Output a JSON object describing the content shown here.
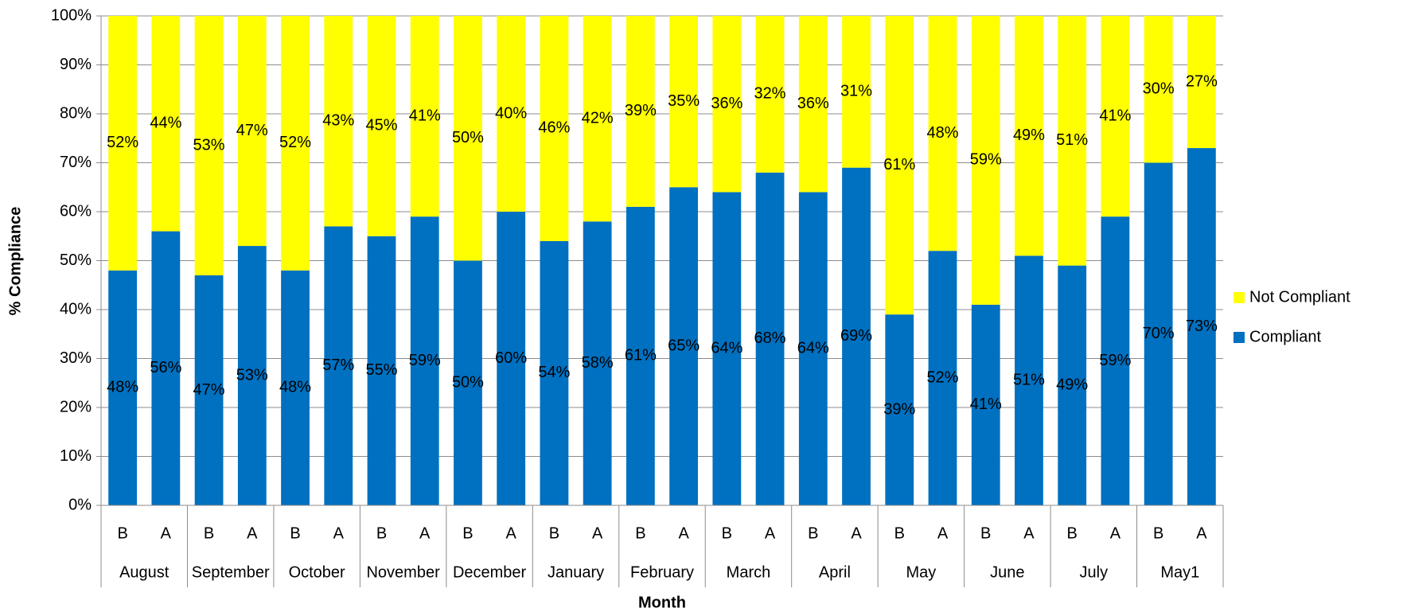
{
  "chart_data": {
    "type": "stacked_bar",
    "y_label": "% Compliance",
    "x_label": "Month",
    "categories": [
      "B",
      "A",
      "B",
      "A",
      "B",
      "A",
      "B",
      "A",
      "B",
      "A",
      "B",
      "A",
      "B",
      "A",
      "B",
      "A",
      "B",
      "A",
      "B",
      "A",
      "B",
      "A",
      "B",
      "A",
      "B",
      "A"
    ],
    "groups": [
      "August",
      "September",
      "October",
      "November",
      "December",
      "January",
      "February",
      "March",
      "April",
      "May",
      "June",
      "July",
      "May1"
    ],
    "series": [
      {
        "name": "Compliant",
        "color": "#0070c0",
        "values": [
          48,
          56,
          47,
          53,
          48,
          57,
          55,
          59,
          50,
          60,
          54,
          58,
          61,
          65,
          64,
          68,
          64,
          69,
          39,
          52,
          41,
          51,
          49,
          59,
          70,
          73
        ],
        "value_labels": [
          "48%",
          "56%",
          "47%",
          "53%",
          "48%",
          "57%",
          "55%",
          "59%",
          "50%",
          "60%",
          "54%",
          "58%",
          "61%",
          "65%",
          "64%",
          "68%",
          "64%",
          "69%",
          "39%",
          "52%",
          "41%",
          "51%",
          "49%",
          "59%",
          "70%",
          "73%"
        ]
      },
      {
        "name": "Not Compliant",
        "color": "#ffff00",
        "values": [
          52,
          44,
          53,
          47,
          52,
          43,
          45,
          41,
          50,
          40,
          46,
          42,
          39,
          35,
          36,
          32,
          36,
          31,
          61,
          48,
          59,
          49,
          51,
          41,
          30,
          27
        ],
        "value_labels": [
          "52%",
          "44%",
          "53%",
          "47%",
          "52%",
          "43%",
          "45%",
          "41%",
          "50%",
          "40%",
          "46%",
          "42%",
          "39%",
          "35%",
          "36%",
          "32%",
          "36%",
          "31%",
          "61%",
          "48%",
          "59%",
          "49%",
          "51%",
          "41%",
          "30%",
          "27%"
        ]
      }
    ],
    "ylim": [
      0,
      100
    ],
    "yticks": [
      {
        "value": 0,
        "label": "0%"
      },
      {
        "value": 10,
        "label": "10%"
      },
      {
        "value": 20,
        "label": "20%"
      },
      {
        "value": 30,
        "label": "30%"
      },
      {
        "value": 40,
        "label": "40%"
      },
      {
        "value": 50,
        "label": "50%"
      },
      {
        "value": 60,
        "label": "60%"
      },
      {
        "value": 70,
        "label": "70%"
      },
      {
        "value": 80,
        "label": "80%"
      },
      {
        "value": 90,
        "label": "90%"
      },
      {
        "value": 100,
        "label": "100%"
      }
    ],
    "grid": true
  }
}
